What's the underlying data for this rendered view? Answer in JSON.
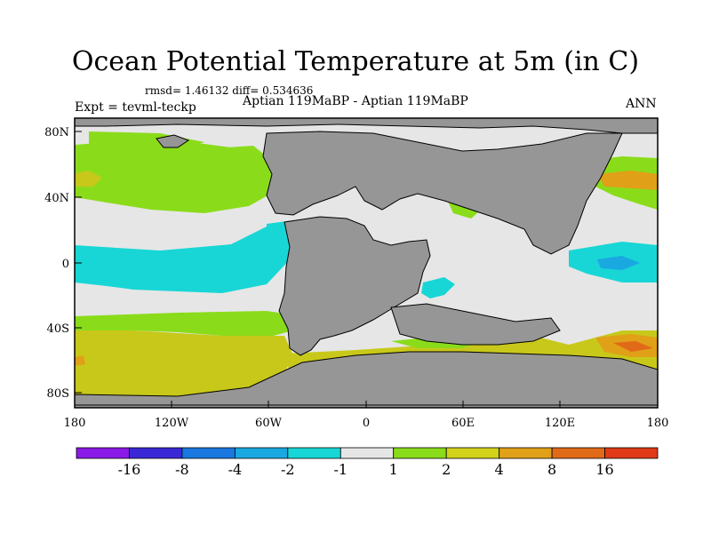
{
  "title": "Ocean Potential Temperature at 5m (in C)",
  "stats": "rmsd= 1.46132 diff= 0.534636",
  "expt": "Expt = tevml-teckp",
  "experiment_label": "Aptian  119MaBP - Aptian  119MaBP",
  "season": "ANN",
  "axes": {
    "x_ticks": [
      "180",
      "120W",
      "60W",
      "0",
      "60E",
      "120E",
      "180"
    ],
    "y_ticks": [
      "80N",
      "40N",
      "0",
      "40S",
      "80S"
    ]
  },
  "colorbar": {
    "labels": [
      "-16",
      "-8",
      "-4",
      "-2",
      "-1",
      "1",
      "2",
      "4",
      "8",
      "16"
    ],
    "colors": [
      "#8a18e6",
      "#3a28d6",
      "#1a78e0",
      "#1aa8e0",
      "#18d6d6",
      "#e6e6e6",
      "#8adc1a",
      "#d2d21a",
      "#e0a018",
      "#e06a18",
      "#e03a18"
    ]
  },
  "map_colors": {
    "land": "#969696",
    "neutral": "#e6e6e6",
    "warm1": "#8adc1a",
    "warm2": "#c8c81a",
    "warm3": "#e0a018",
    "warm4": "#e06a18",
    "cool1": "#18d6d6",
    "cool2": "#1aa8e0"
  }
}
